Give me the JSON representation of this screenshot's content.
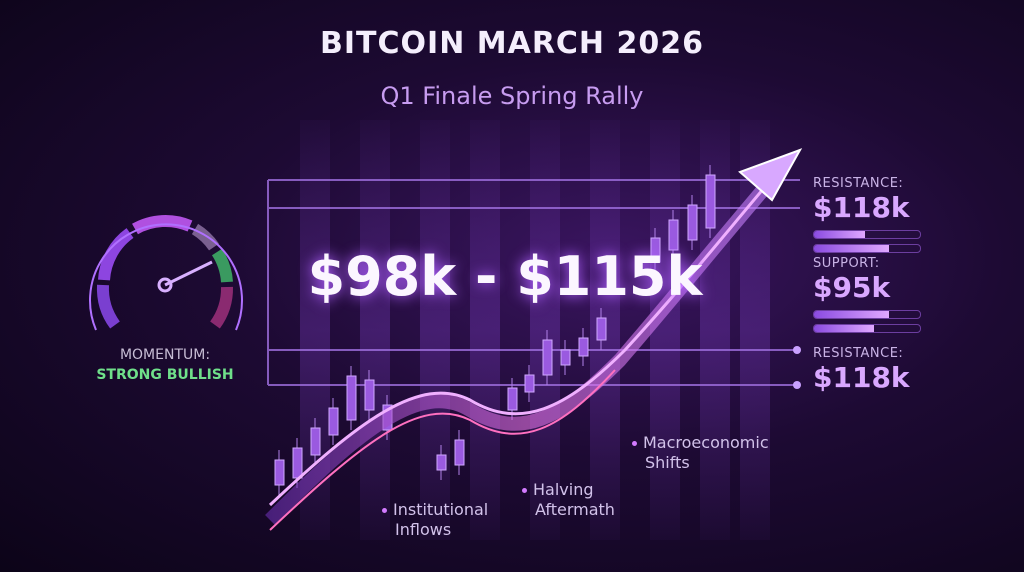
{
  "header": {
    "title": "BITCOIN MARCH 2026",
    "subtitle": "Q1 Finale Spring Rally"
  },
  "main": {
    "price_range": "$98k - $115k"
  },
  "momentum": {
    "label": "MOMENTUM:",
    "value": "STRONG BULLISH",
    "value_color": "#6fe08a",
    "gauge_level": 0.72
  },
  "levels": [
    {
      "label": "RESISTANCE:",
      "value": "$118k",
      "bars": [
        0.48,
        0.71
      ]
    },
    {
      "label": "SUPPORT:",
      "value": "$95k",
      "bars": [
        0.71,
        0.57
      ]
    },
    {
      "label": "RESISTANCE:",
      "value": "$118k"
    }
  ],
  "drivers": [
    {
      "line1": "Institutional",
      "line2": "Inflows"
    },
    {
      "line1": "Halving",
      "line2": "Aftermath"
    },
    {
      "line1": "Macroeconomic",
      "line2": "Shifts"
    }
  ],
  "colors": {
    "accent": "#b060ff",
    "background": "#1d0a33"
  }
}
